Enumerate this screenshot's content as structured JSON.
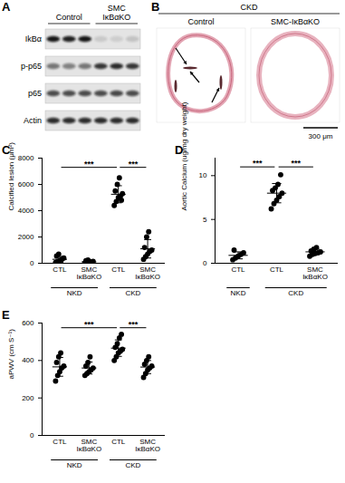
{
  "panel_A": {
    "label": "A",
    "columns": [
      "Control",
      "SMC\nIκBαKO"
    ],
    "rows": [
      "IkBα",
      "p-p65",
      "p65",
      "Actin"
    ]
  },
  "panel_B": {
    "label": "B",
    "header": "CKD",
    "columns": [
      "Control",
      "SMC-IκBαKO"
    ],
    "scale_bar": "300 μm"
  },
  "chart_data": [
    {
      "type": "scatter",
      "title": "C",
      "ylabel": "Calcified lesion (μm²)",
      "categories": [
        "CTL",
        "SMC\nIκBαKO",
        "CTL",
        "SMC\nIκBαKO"
      ],
      "groups": [
        {
          "name": "NKD",
          "from": 0,
          "to": 1
        },
        {
          "name": "CKD",
          "from": 2,
          "to": 3
        }
      ],
      "points": [
        [
          50,
          120,
          200,
          300,
          400,
          550,
          700,
          150
        ],
        [
          20,
          40,
          60,
          100,
          150,
          200,
          250,
          80
        ],
        [
          4400,
          4700,
          5000,
          5100,
          5300,
          5500,
          6000,
          6500,
          4800
        ],
        [
          300,
          500,
          700,
          900,
          1000,
          1200,
          2000,
          2400
        ]
      ],
      "mean": [
        300,
        110,
        5250,
        1100
      ],
      "sd": [
        220,
        80,
        650,
        700
      ],
      "comparisons": [
        {
          "from": 0,
          "to": 2,
          "y": 7300,
          "label": "***"
        },
        {
          "from": 2,
          "to": 3,
          "y": 7300,
          "label": "***"
        }
      ],
      "ylim": [
        0,
        8000
      ],
      "yticks": [
        0,
        2000,
        4000,
        6000,
        8000
      ],
      "color": "#000000"
    },
    {
      "type": "scatter",
      "title": "D",
      "ylabel": "Aortic Calcium (ug/mg dry weight)",
      "categories": [
        "CTL",
        "CTL",
        "SMC\nIκBαKO"
      ],
      "groups": [
        {
          "name": "NKD",
          "from": 0,
          "to": 0
        },
        {
          "name": "CKD",
          "from": 1,
          "to": 2
        }
      ],
      "points": [
        [
          0.4,
          0.6,
          0.8,
          1.0,
          1.2,
          1.5
        ],
        [
          6.2,
          6.8,
          7.2,
          7.6,
          8.0,
          8.3,
          8.6,
          9.0,
          10.1
        ],
        [
          0.8,
          1.0,
          1.1,
          1.2,
          1.3,
          1.4,
          1.6,
          1.8
        ]
      ],
      "mean": [
        0.9,
        8.0,
        1.3
      ],
      "sd": [
        0.4,
        1.1,
        0.3
      ],
      "comparisons": [
        {
          "from": 0,
          "to": 1,
          "y": 11,
          "label": "***"
        },
        {
          "from": 1,
          "to": 2,
          "y": 11,
          "label": "***"
        }
      ],
      "ylim": [
        0,
        12
      ],
      "yticks": [
        0,
        5,
        10
      ],
      "color": "#000000"
    },
    {
      "type": "scatter",
      "title": "E",
      "ylabel": "aPWV (cm S⁻¹)",
      "categories": [
        "CTL",
        "SMC\nIκBαKO",
        "CTL",
        "SMC\nIκBαKO"
      ],
      "groups": [
        {
          "name": "NKD",
          "from": 0,
          "to": 1
        },
        {
          "name": "CKD",
          "from": 2,
          "to": 3
        }
      ],
      "points": [
        [
          290,
          320,
          340,
          360,
          370,
          390,
          420,
          440
        ],
        [
          320,
          330,
          340,
          350,
          360,
          370,
          390,
          420
        ],
        [
          400,
          420,
          440,
          450,
          460,
          470,
          490,
          520,
          540
        ],
        [
          310,
          330,
          350,
          360,
          370,
          380,
          400,
          420
        ]
      ],
      "mean": [
        366,
        360,
        466,
        365
      ],
      "sd": [
        50,
        32,
        44,
        35
      ],
      "comparisons": [
        {
          "from": 0,
          "to": 2,
          "y": 575,
          "label": "***"
        },
        {
          "from": 2,
          "to": 3,
          "y": 575,
          "label": "***"
        }
      ],
      "ylim": [
        0,
        600
      ],
      "yticks": [
        0,
        200,
        400,
        600
      ],
      "color": "#000000"
    }
  ]
}
